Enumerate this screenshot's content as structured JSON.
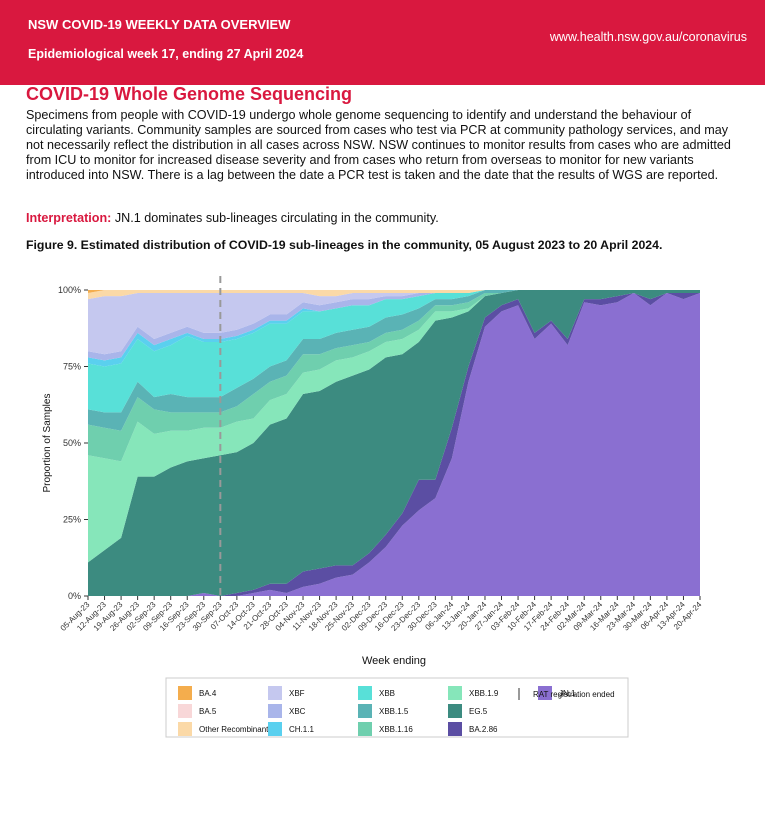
{
  "header": {
    "title": "NSW COVID-19 WEEKLY DATA OVERVIEW",
    "subtitle": "Epidemiological week 17, ending 27 April 2024",
    "url": "www.health.nsw.gov.au/coronavirus"
  },
  "section": {
    "title": "COVID-19 Whole Genome Sequencing",
    "paragraph": "Specimens from people with COVID-19 undergo whole genome sequencing to identify and understand the behaviour of circulating variants. Community samples are sourced from cases who test via PCR at community pathology services, and may not necessarily reflect the distribution in all cases across NSW. NSW continues to monitor results from cases who are admitted from ICU to monitor for increased disease severity and from cases who return from overseas to monitor for new variants introduced into NSW. There is a lag between the date a PCR test is taken and the date that the results of WGS are reported.",
    "interpretation_label": "Interpretation:",
    "interpretation": "JN.1 dominates sub-lineages circulating in the community.",
    "figure_caption": "Figure 9. Estimated distribution of COVID-19 sub-lineages in the community, 05 August 2023 to 20 April 2024."
  },
  "chart_data": {
    "type": "stacked_area",
    "x_label": "Week ending",
    "y_label": "Proportion of Samples",
    "categories": [
      "05-Aug-23",
      "12-Aug-23",
      "19-Aug-23",
      "26-Aug-23",
      "02-Sep-23",
      "09-Sep-23",
      "16-Sep-23",
      "23-Sep-23",
      "30-Sep-23",
      "07-Oct-23",
      "14-Oct-23",
      "21-Oct-23",
      "28-Oct-23",
      "04-Nov-23",
      "11-Nov-23",
      "18-Nov-23",
      "25-Nov-23",
      "02-Dec-23",
      "09-Dec-23",
      "16-Dec-23",
      "23-Dec-23",
      "30-Dec-23",
      "06-Jan-24",
      "13-Jan-24",
      "20-Jan-24",
      "27-Jan-24",
      "03-Feb-24",
      "10-Feb-24",
      "17-Feb-24",
      "24-Feb-24",
      "02-Mar-24",
      "09-Mar-24",
      "16-Mar-24",
      "23-Mar-24",
      "30-Mar-24",
      "06-Apr-24",
      "13-Apr-24",
      "20-Apr-24"
    ],
    "ylim": [
      0,
      100
    ],
    "yticks": [
      {
        "value": 0,
        "label": "0%"
      },
      {
        "value": 25,
        "label": "25%"
      },
      {
        "value": 50,
        "label": "50%"
      },
      {
        "value": 75,
        "label": "75%"
      },
      {
        "value": 100,
        "label": "100%"
      }
    ],
    "annotation": {
      "label": "RAT registration ended",
      "x": "30-Sep-23"
    },
    "series": [
      {
        "name": "BA.4",
        "color": "#f4ad4d",
        "values": [
          1,
          0,
          0,
          0,
          0,
          0,
          0,
          0,
          0,
          0,
          0,
          0,
          0,
          0,
          0,
          0,
          0,
          0,
          0,
          0,
          0,
          0,
          0,
          0,
          0,
          0,
          0,
          0,
          0,
          0,
          0,
          0,
          0,
          0,
          0,
          0,
          0,
          0
        ]
      },
      {
        "name": "BA.5",
        "color": "#f8d7d8",
        "values": [
          0,
          0,
          0,
          0,
          0,
          0,
          0,
          0,
          0,
          0,
          0,
          0,
          0,
          0,
          0,
          0,
          0,
          0,
          0,
          0,
          0,
          0,
          0,
          0,
          0,
          0,
          0,
          0,
          0,
          0,
          0,
          0,
          0,
          0,
          0,
          0,
          0,
          0
        ]
      },
      {
        "name": "Other Recombinant",
        "color": "#fbd9a7",
        "values": [
          2,
          2,
          2,
          1,
          1,
          1,
          1,
          1,
          1,
          1,
          1,
          1,
          1,
          1,
          2,
          2,
          1,
          1,
          1,
          1,
          1,
          1,
          1,
          1,
          0,
          0,
          0,
          0,
          0,
          0,
          0,
          0,
          0,
          0,
          0,
          0,
          0,
          0
        ]
      },
      {
        "name": "XBF",
        "color": "#c5c8ef",
        "values": [
          17,
          19,
          18,
          11,
          15,
          13,
          11,
          13,
          13,
          12,
          10,
          7,
          7,
          3,
          3,
          2,
          2,
          2,
          1,
          1,
          0,
          0,
          0,
          0,
          0,
          0,
          0,
          0,
          0,
          0,
          0,
          0,
          0,
          0,
          0,
          0,
          0,
          0
        ]
      },
      {
        "name": "XBC",
        "color": "#a9b5ea",
        "values": [
          2,
          2,
          2,
          2,
          2,
          2,
          2,
          2,
          2,
          2,
          2,
          2,
          2,
          2,
          2,
          2,
          2,
          2,
          1,
          1,
          1,
          0,
          0,
          0,
          0,
          0,
          0,
          0,
          0,
          0,
          0,
          0,
          0,
          0,
          0,
          0,
          0,
          0
        ]
      },
      {
        "name": "CH.1.1",
        "color": "#5ad0ef",
        "values": [
          2,
          2,
          2,
          2,
          2,
          2,
          1,
          1,
          1,
          1,
          1,
          1,
          1,
          1,
          0,
          0,
          0,
          0,
          0,
          0,
          0,
          0,
          0,
          0,
          0,
          0,
          0,
          0,
          0,
          0,
          0,
          0,
          0,
          0,
          0,
          0,
          0,
          0
        ]
      },
      {
        "name": "XBB",
        "color": "#58e0d8",
        "values": [
          15,
          15,
          16,
          14,
          15,
          16,
          20,
          18,
          18,
          16,
          15,
          14,
          12,
          9,
          9,
          8,
          8,
          7,
          6,
          5,
          4,
          2,
          2,
          1,
          0,
          0,
          0,
          0,
          0,
          0,
          0,
          0,
          0,
          0,
          0,
          0,
          0,
          0
        ]
      },
      {
        "name": "XBB.1.5",
        "color": "#5ab3b5",
        "values": [
          5,
          5,
          6,
          5,
          4,
          6,
          5,
          5,
          5,
          6,
          5,
          5,
          5,
          5,
          5,
          5,
          5,
          5,
          5,
          5,
          4,
          2,
          2,
          2,
          1,
          1,
          0,
          0,
          0,
          0,
          0,
          0,
          0,
          0,
          0,
          0,
          0,
          0
        ]
      },
      {
        "name": "XBB.1.16",
        "color": "#6fcfae",
        "values": [
          10,
          10,
          10,
          8,
          8,
          6,
          6,
          5,
          5,
          5,
          8,
          6,
          6,
          6,
          5,
          4,
          4,
          3,
          3,
          3,
          3,
          2,
          2,
          2,
          1,
          0,
          0,
          0,
          0,
          0,
          0,
          0,
          0,
          0,
          0,
          0,
          0,
          0
        ]
      },
      {
        "name": "XBB.1.9",
        "color": "#86e6ba",
        "values": [
          35,
          30,
          25,
          18,
          14,
          12,
          10,
          10,
          9,
          10,
          8,
          8,
          8,
          7,
          7,
          7,
          6,
          6,
          5,
          5,
          4,
          3,
          2,
          1,
          0,
          0,
          0,
          0,
          0,
          0,
          0,
          0,
          0,
          0,
          0,
          0,
          0,
          0
        ]
      },
      {
        "name": "EG.5",
        "color": "#3c8b80",
        "values": [
          11,
          15,
          19,
          39,
          39,
          42,
          44,
          44,
          46,
          46,
          48,
          52,
          54,
          58,
          58,
          60,
          62,
          60,
          58,
          52,
          45,
          52,
          36,
          18,
          7,
          4,
          3,
          14,
          10,
          16,
          3,
          3,
          2,
          1,
          3,
          1,
          1,
          1
        ]
      },
      {
        "name": "BA.2.86",
        "color": "#5b4ea3",
        "values": [
          0,
          0,
          0,
          0,
          0,
          0,
          0,
          0,
          0,
          1,
          1,
          2,
          3,
          5,
          5,
          4,
          3,
          3,
          4,
          4,
          10,
          6,
          10,
          5,
          3,
          2,
          2,
          2,
          1,
          2,
          1,
          2,
          2,
          0,
          2,
          0,
          2,
          0
        ]
      },
      {
        "name": "JN.1",
        "color": "#8a6fd1",
        "values": [
          0,
          0,
          0,
          0,
          0,
          0,
          0,
          1,
          0,
          0,
          1,
          2,
          1,
          3,
          4,
          6,
          7,
          11,
          16,
          23,
          28,
          32,
          45,
          70,
          88,
          93,
          95,
          84,
          89,
          82,
          96,
          95,
          96,
          99,
          95,
          99,
          97,
          99
        ]
      }
    ]
  }
}
